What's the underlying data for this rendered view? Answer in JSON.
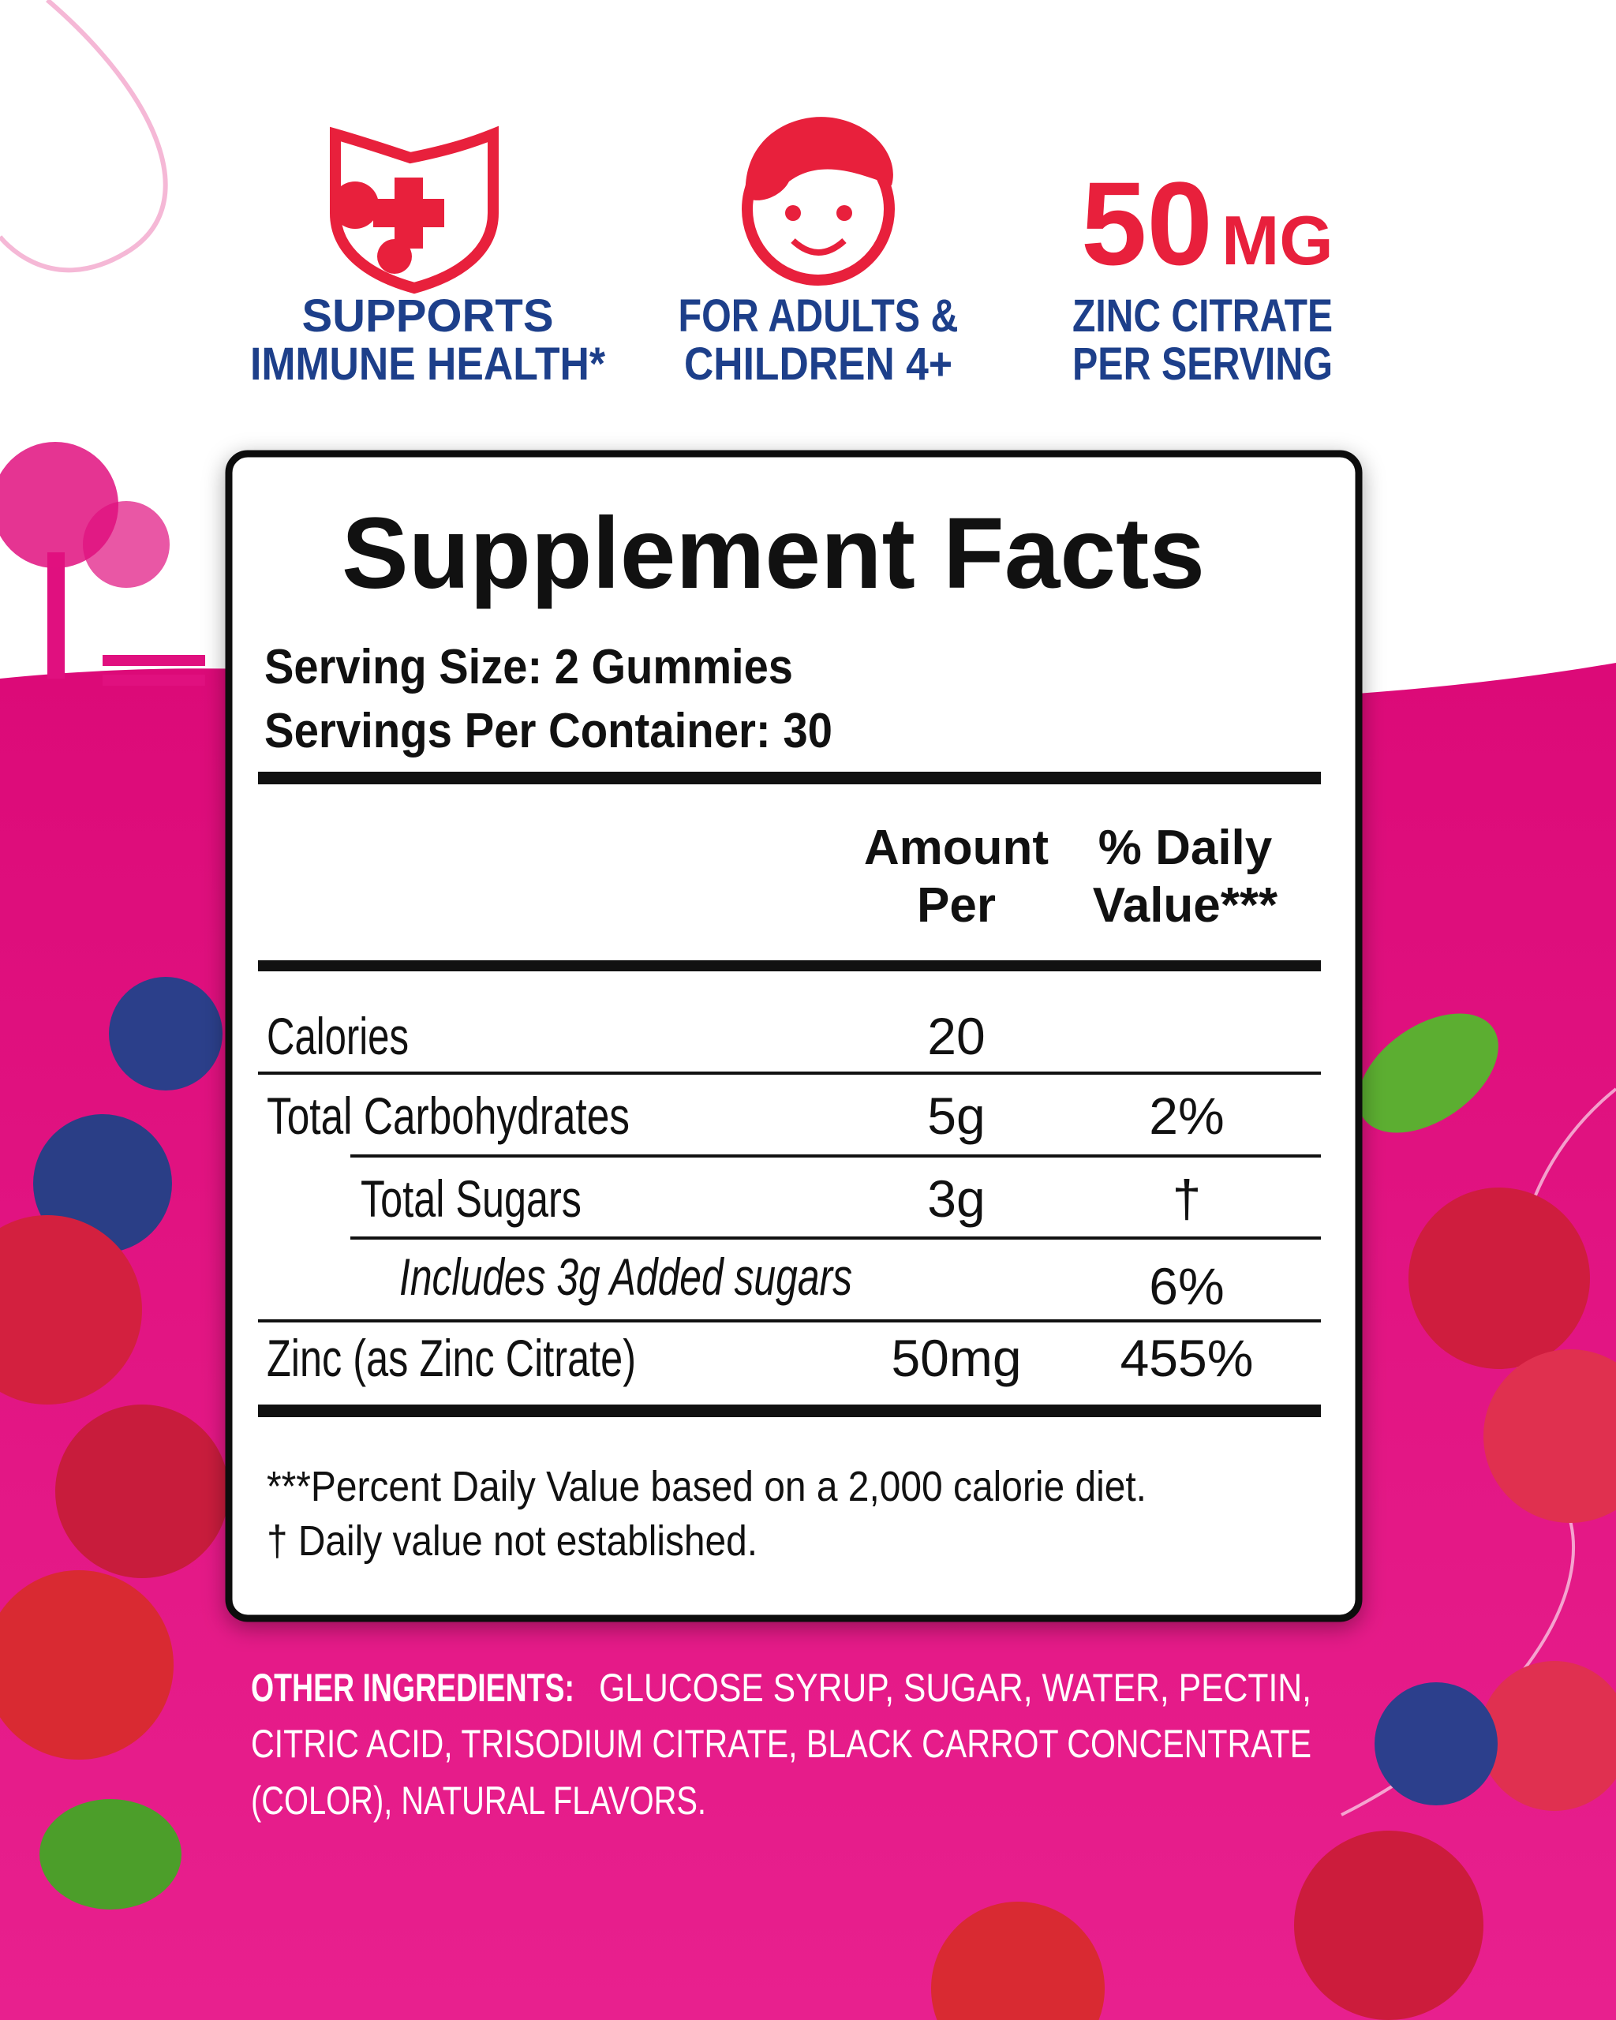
{
  "features": [
    {
      "lines": [
        "SUPPORTS",
        "IMMUNE HEALTH*"
      ]
    },
    {
      "lines": [
        "FOR ADULTS &",
        "CHILDREN 4+"
      ]
    },
    {
      "amount": "50",
      "unit": "MG",
      "lines": [
        "ZINC CITRATE",
        "PER SERVING"
      ]
    }
  ],
  "facts": {
    "title": "Supplement Facts",
    "serving_size": "Serving Size: 2 Gummies",
    "servings_per_container": "Servings Per Container: 30",
    "header": {
      "amount": [
        "Amount",
        "Per"
      ],
      "daily_value": [
        "% Daily",
        "Value***"
      ]
    },
    "rows": [
      [
        "Calories",
        "20",
        null
      ],
      [
        "Total Carbohydrates",
        "5g",
        "2%"
      ],
      [
        "Total Sugars",
        "3g",
        "†"
      ],
      [
        "Includes 3g Added sugars",
        null,
        "6%"
      ],
      [
        "Zinc (as Zinc Citrate)",
        "50mg",
        "455%"
      ]
    ],
    "footnotes": [
      "***Percent Daily Value based on a 2,000 calorie diet.",
      "† Daily value not established."
    ]
  },
  "other_ingredients": {
    "label": "OTHER INGREDIENTS:",
    "lines": [
      "GLUCOSE SYRUP, SUGAR, WATER, PECTIN,",
      "CITRIC ACID, TRISODIUM CITRATE, BLACK CARROT CONCENTRATE",
      "(COLOR), NATURAL FLAVORS."
    ]
  }
}
